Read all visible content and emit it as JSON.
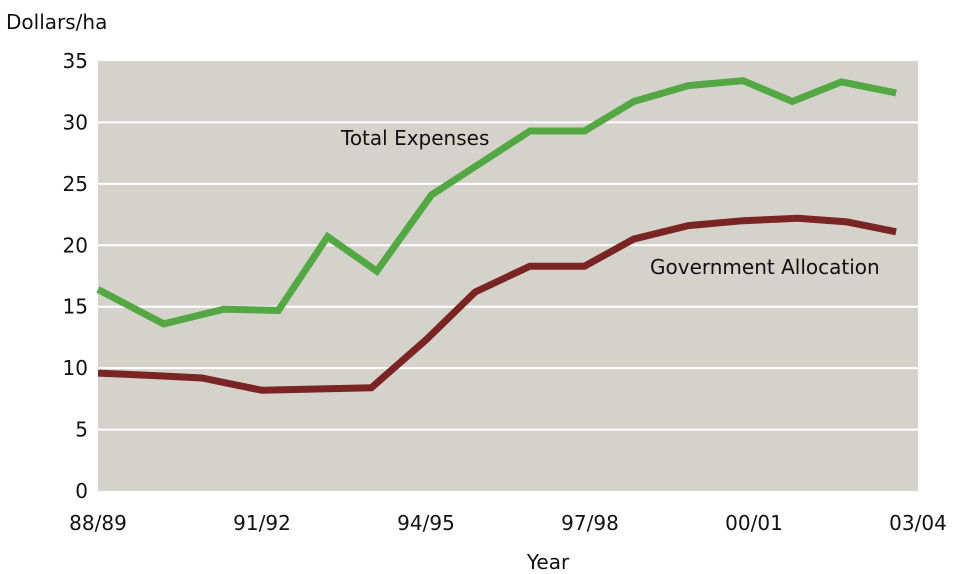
{
  "chart_data": {
    "type": "line",
    "title": "",
    "ylabel": "Dollars/ha",
    "xlabel": "Year",
    "ylim": [
      0,
      35
    ],
    "yticks": [
      0,
      5,
      10,
      15,
      20,
      25,
      30,
      35
    ],
    "grid": true,
    "background_color": "#d4d2cb",
    "grid_color": "#ffffff",
    "x": [
      "88/89",
      "89/90",
      "90/91",
      "91/92",
      "92/93",
      "93/94",
      "94/95",
      "95/96",
      "96/97",
      "97/98",
      "98/99",
      "99/00",
      "00/01",
      "01/02",
      "02/03",
      "03/04"
    ],
    "x_tick_labels": [
      {
        "index": 0,
        "label": "88/89"
      },
      {
        "index": 3,
        "label": "91/92"
      },
      {
        "index": 6,
        "label": "94/95"
      },
      {
        "index": 9,
        "label": "97/98"
      },
      {
        "index": 12,
        "label": "00/01"
      },
      {
        "index": 15,
        "label": "03/04"
      }
    ],
    "series": [
      {
        "name": "Total Expenses",
        "color": "#53a843",
        "points": [
          [
            0,
            16.4
          ],
          [
            1.2,
            13.6
          ],
          [
            2.3,
            14.8
          ],
          [
            3.3,
            14.7
          ],
          [
            4.2,
            20.7
          ],
          [
            5.1,
            17.9
          ],
          [
            6.1,
            24.1
          ],
          [
            7.0,
            26.7
          ],
          [
            7.9,
            29.3
          ],
          [
            8.9,
            29.3
          ],
          [
            9.8,
            31.7
          ],
          [
            10.8,
            33.0
          ],
          [
            11.8,
            33.4
          ],
          [
            12.7,
            31.7
          ],
          [
            13.6,
            33.3
          ],
          [
            14.6,
            32.4
          ]
        ]
      },
      {
        "name": "Government Allocation",
        "color": "#7a2424",
        "points": [
          [
            0,
            9.6
          ],
          [
            1.0,
            9.4
          ],
          [
            1.9,
            9.2
          ],
          [
            3.0,
            8.2
          ],
          [
            4.0,
            8.3
          ],
          [
            5.0,
            8.4
          ],
          [
            6.0,
            12.3
          ],
          [
            6.9,
            16.2
          ],
          [
            7.9,
            18.3
          ],
          [
            8.9,
            18.3
          ],
          [
            9.8,
            20.5
          ],
          [
            10.8,
            21.6
          ],
          [
            11.8,
            22.0
          ],
          [
            12.8,
            22.2
          ],
          [
            13.7,
            21.9
          ],
          [
            14.6,
            21.1
          ]
        ]
      }
    ],
    "annotations": [
      {
        "series": "Total Expenses",
        "text": "Total Expenses"
      },
      {
        "series": "Government Allocation",
        "text": "Government Allocation"
      }
    ]
  }
}
